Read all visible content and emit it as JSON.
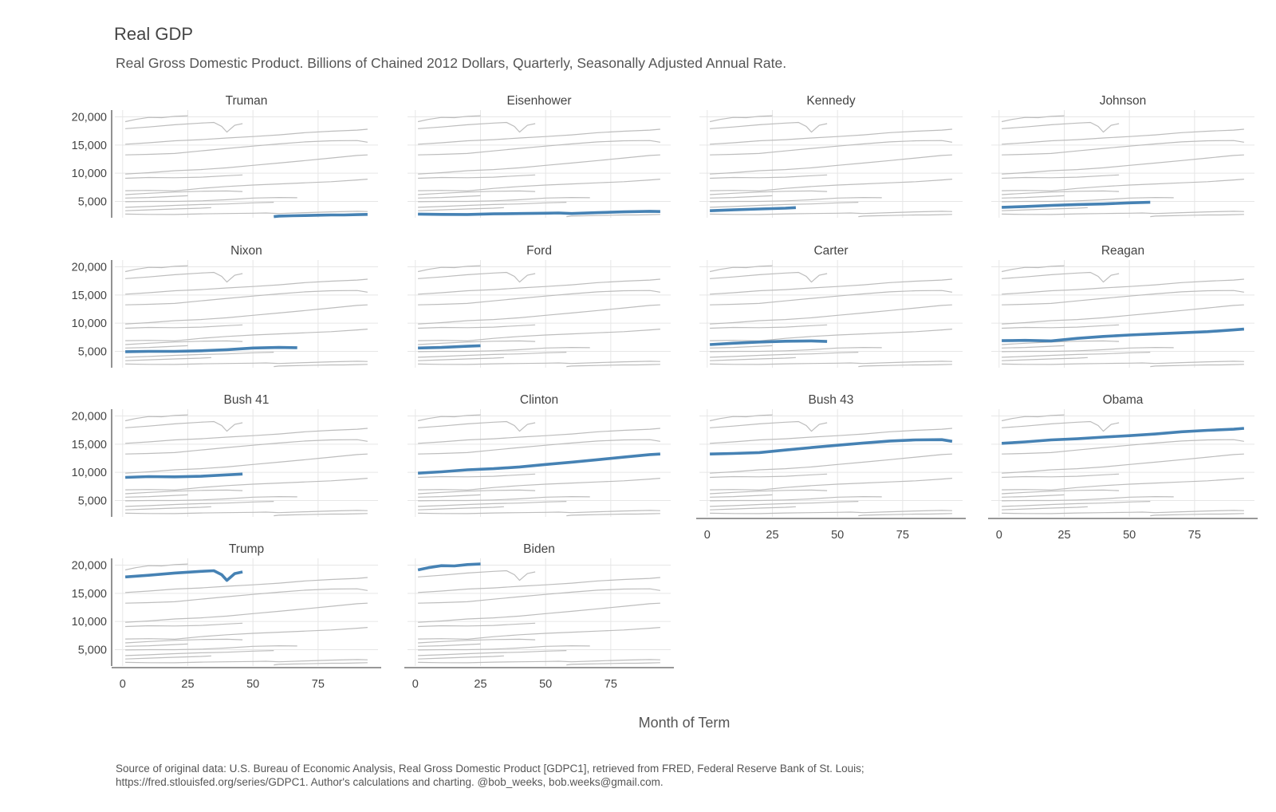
{
  "chart_data": {
    "type": "line",
    "title": "Real GDP",
    "subtitle": "Real Gross Domestic Product. Billions of Chained 2012 Dollars, Quarterly, Seasonally Adjusted Annual Rate.",
    "xlabel": "Month of Term",
    "ylabel": "",
    "caption_line1": "Source of original data: U.S. Bureau of Economic Analysis, Real Gross Domestic Product [GDPC1], retrieved from FRED, Federal Reserve Bank of St. Louis;",
    "caption_line2": "https://fred.stlouisfed.org/series/GDPC1. Author's calculations and charting. @bob_weeks, bob.weeks@gmail.com.",
    "xlim": [
      -3,
      98
    ],
    "ylim": [
      2100,
      21200
    ],
    "xticks": [
      0,
      25,
      50,
      75
    ],
    "yticks": [
      5000,
      10000,
      15000,
      20000
    ],
    "ytick_labels": [
      "5,000",
      "10,000",
      "15,000",
      "20,000"
    ],
    "grid": true,
    "highlight_color": "#4682b4",
    "context_color": "#bdbdbd",
    "grid_color": "#e6e6e6",
    "series": [
      {
        "name": "Truman",
        "x": [
          58,
          60,
          65,
          70,
          75,
          80,
          85,
          90,
          94
        ],
        "y": [
          2300,
          2400,
          2450,
          2500,
          2550,
          2600,
          2600,
          2650,
          2700
        ]
      },
      {
        "name": "Eisenhower",
        "x": [
          1,
          10,
          20,
          30,
          40,
          50,
          55,
          60,
          70,
          80,
          90,
          94
        ],
        "y": [
          2750,
          2700,
          2680,
          2800,
          2850,
          2900,
          2950,
          2850,
          3000,
          3150,
          3250,
          3200
        ]
      },
      {
        "name": "Kennedy",
        "x": [
          1,
          10,
          20,
          30,
          34
        ],
        "y": [
          3350,
          3500,
          3650,
          3800,
          3900
        ]
      },
      {
        "name": "Johnson",
        "x": [
          1,
          10,
          20,
          30,
          40,
          50,
          58
        ],
        "y": [
          3950,
          4100,
          4300,
          4450,
          4550,
          4750,
          4850
        ]
      },
      {
        "name": "Nixon",
        "x": [
          1,
          10,
          20,
          30,
          40,
          50,
          60,
          67
        ],
        "y": [
          4950,
          5000,
          5000,
          5100,
          5300,
          5600,
          5700,
          5650
        ]
      },
      {
        "name": "Ford",
        "x": [
          1,
          10,
          20,
          25
        ],
        "y": [
          5600,
          5700,
          5900,
          6000
        ]
      },
      {
        "name": "Carter",
        "x": [
          1,
          10,
          20,
          30,
          40,
          46
        ],
        "y": [
          6200,
          6450,
          6650,
          6800,
          6850,
          6750
        ]
      },
      {
        "name": "Reagan",
        "x": [
          1,
          10,
          20,
          30,
          40,
          50,
          60,
          70,
          80,
          90,
          94
        ],
        "y": [
          6900,
          6950,
          6850,
          7300,
          7650,
          7900,
          8100,
          8300,
          8500,
          8800,
          8950
        ]
      },
      {
        "name": "Bush 41",
        "x": [
          1,
          10,
          20,
          30,
          40,
          46
        ],
        "y": [
          9100,
          9250,
          9200,
          9300,
          9550,
          9700
        ]
      },
      {
        "name": "Clinton",
        "x": [
          1,
          10,
          20,
          30,
          40,
          50,
          60,
          70,
          80,
          90,
          94
        ],
        "y": [
          9850,
          10100,
          10450,
          10650,
          10950,
          11400,
          11800,
          12250,
          12700,
          13150,
          13250
        ]
      },
      {
        "name": "Bush 43",
        "x": [
          1,
          10,
          20,
          30,
          40,
          50,
          60,
          70,
          80,
          90,
          94
        ],
        "y": [
          13250,
          13350,
          13500,
          13950,
          14400,
          14800,
          15200,
          15550,
          15750,
          15800,
          15500
        ]
      },
      {
        "name": "Obama",
        "x": [
          1,
          10,
          20,
          30,
          40,
          50,
          60,
          70,
          80,
          90,
          94
        ],
        "y": [
          15150,
          15400,
          15750,
          15950,
          16250,
          16500,
          16800,
          17200,
          17450,
          17650,
          17800
        ]
      },
      {
        "name": "Trump",
        "x": [
          1,
          10,
          20,
          30,
          35,
          38,
          40,
          43,
          46
        ],
        "y": [
          17900,
          18200,
          18600,
          18900,
          19000,
          18300,
          17300,
          18500,
          18800
        ]
      },
      {
        "name": "Biden",
        "x": [
          1,
          5,
          10,
          15,
          20,
          25
        ],
        "y": [
          19150,
          19550,
          19900,
          19850,
          20100,
          20200
        ]
      }
    ]
  }
}
